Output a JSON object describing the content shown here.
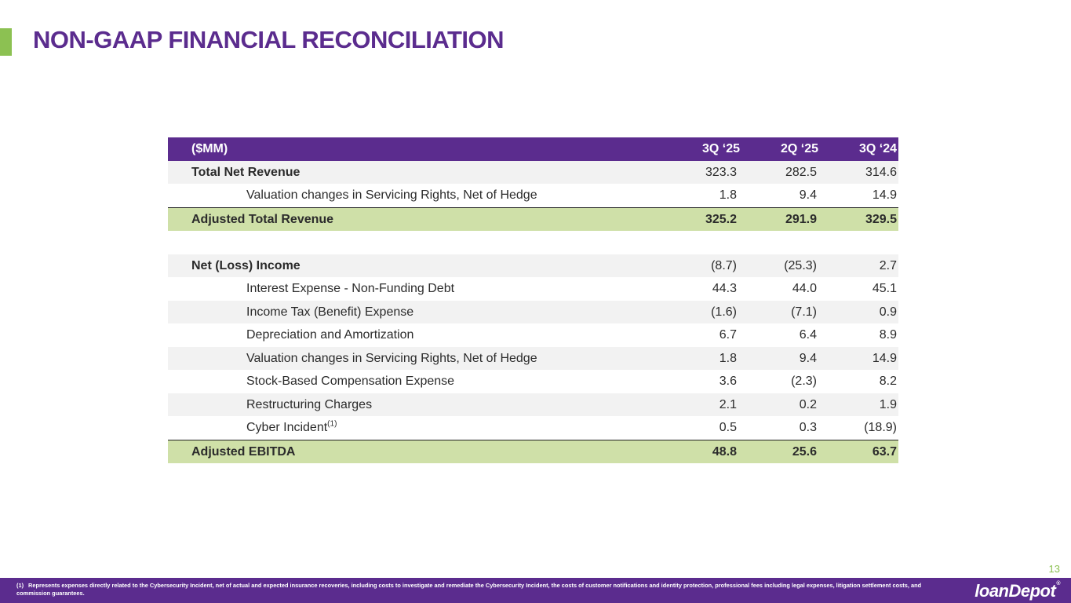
{
  "page": {
    "title": "NON-GAAP FINANCIAL RECONCILIATION",
    "page_number": "13"
  },
  "table": {
    "header": {
      "label": "($MM)",
      "col1": "3Q ‘25",
      "col2": "2Q ‘25",
      "col3": "3Q ‘24"
    },
    "revenue_rows": [
      {
        "label": "Total Net Revenue",
        "v1": "323.3",
        "v2": "282.5",
        "v3": "314.6"
      },
      {
        "label": "Valuation changes in Servicing Rights, Net of Hedge",
        "v1": "1.8",
        "v2": "9.4",
        "v3": "14.9"
      }
    ],
    "revenue_total": {
      "label": "Adjusted Total Revenue",
      "v1": "325.2",
      "v2": "291.9",
      "v3": "329.5"
    },
    "ebitda_rows": [
      {
        "label": "Net (Loss) Income",
        "v1": "(8.7)",
        "v2": "(25.3)",
        "v3": "2.7"
      },
      {
        "label": "Interest Expense - Non-Funding Debt",
        "v1": "44.3",
        "v2": "44.0",
        "v3": "45.1"
      },
      {
        "label": "Income Tax (Benefit) Expense",
        "v1": "(1.6)",
        "v2": "(7.1)",
        "v3": "0.9"
      },
      {
        "label": "Depreciation and Amortization",
        "v1": "6.7",
        "v2": "6.4",
        "v3": "8.9"
      },
      {
        "label": "Valuation changes in Servicing Rights, Net of Hedge",
        "v1": "1.8",
        "v2": "9.4",
        "v3": "14.9"
      },
      {
        "label": "Stock-Based Compensation Expense",
        "v1": "3.6",
        "v2": "(2.3)",
        "v3": "8.2"
      },
      {
        "label": "Restructuring Charges",
        "v1": "2.1",
        "v2": "0.2",
        "v3": "1.9"
      },
      {
        "label": "Cyber Incident",
        "footnote_ref": "(1)",
        "v1": "0.5",
        "v2": "0.3",
        "v3": "(18.9)"
      }
    ],
    "ebitda_total": {
      "label": "Adjusted EBITDA",
      "v1": "48.8",
      "v2": "25.6",
      "v3": "63.7"
    }
  },
  "footer": {
    "footnote_marker": "(1)",
    "footnote_text": "Represents expenses directly related to the Cybersecurity Incident, net of actual and expected insurance recoveries, including costs to investigate and remediate the Cybersecurity Incident, the costs of customer notifications and identity protection, professional fees including legal expenses, litigation settlement costs, and commission guarantees.",
    "logo_text": "loanDepot",
    "logo_mark": "®"
  },
  "colors": {
    "brand_purple": "#5b2c8e",
    "accent_green": "#8cc152",
    "total_row_green": "#cfe0a8",
    "row_shade": "#f2f2f2"
  }
}
